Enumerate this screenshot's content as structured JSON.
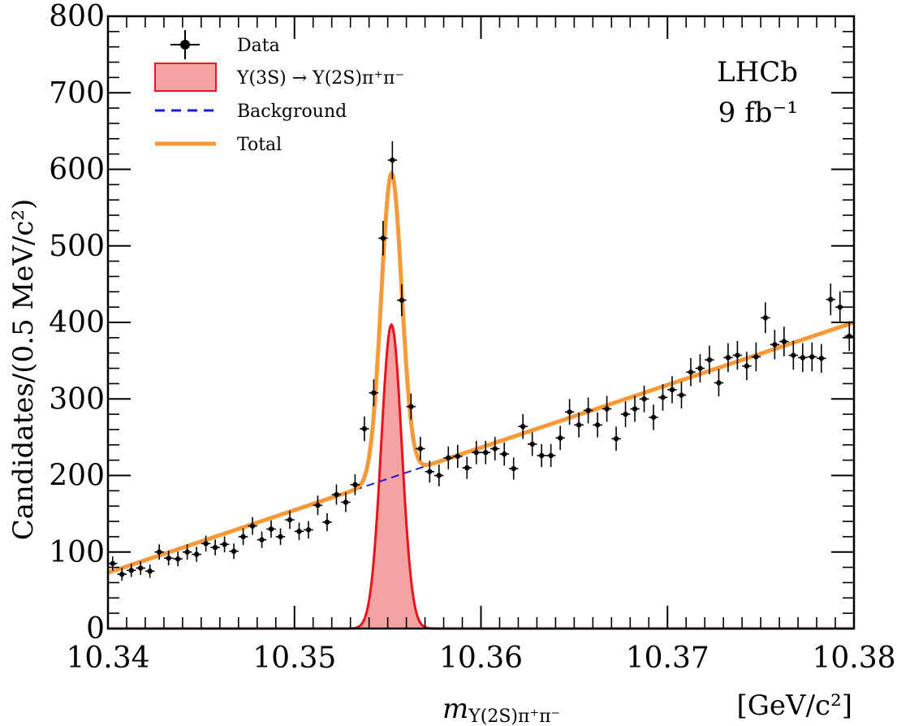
{
  "chart_data": {
    "type": "line",
    "xlabel_math": "m",
    "xlabel_sub": "Υ(2S)π⁺π⁻",
    "xunit": "[GeV/c²]",
    "ylabel": "Candidates/(0.5 MeV/c²)",
    "xlim": [
      10.34,
      10.38
    ],
    "ylim": [
      0,
      800
    ],
    "x_ticks": [
      "10.34",
      "10.35",
      "10.36",
      "10.37",
      "10.38"
    ],
    "y_ticks": [
      "0",
      "100",
      "200",
      "300",
      "400",
      "500",
      "600",
      "700",
      "800"
    ],
    "annotations": {
      "experiment": "LHCb",
      "lumi": "9 fb⁻¹"
    },
    "legend": {
      "placement": "top-left",
      "entries": [
        {
          "label": "Data",
          "style": "marker"
        },
        {
          "label": "Υ(3S) → Υ(2S)π⁺π⁻",
          "style": "fill"
        },
        {
          "label": "Background",
          "style": "dashed"
        },
        {
          "label": "Total",
          "style": "line"
        }
      ]
    },
    "colors": {
      "signal_fill": "#f4a3a3",
      "signal_line": "#e8141c",
      "background": "#1c1cd6",
      "total": "#f69936",
      "data": "#000000"
    },
    "model": {
      "background": {
        "x": [
          10.34,
          10.38
        ],
        "y": [
          73,
          400
        ]
      },
      "signal": {
        "mean": 10.3552,
        "sigma": 0.00055,
        "peak": 397
      }
    },
    "data": {
      "x": [
        10.34025,
        10.34075,
        10.34125,
        10.34175,
        10.34225,
        10.34275,
        10.34325,
        10.34375,
        10.34425,
        10.34475,
        10.34525,
        10.34575,
        10.34625,
        10.34675,
        10.34725,
        10.34775,
        10.34825,
        10.34875,
        10.34925,
        10.34975,
        10.35025,
        10.35075,
        10.35125,
        10.35175,
        10.35225,
        10.35275,
        10.35325,
        10.35375,
        10.35425,
        10.35475,
        10.35525,
        10.35575,
        10.35625,
        10.35675,
        10.35725,
        10.35775,
        10.35825,
        10.35875,
        10.35925,
        10.35975,
        10.36025,
        10.36075,
        10.36125,
        10.36175,
        10.36225,
        10.36275,
        10.36325,
        10.36375,
        10.36425,
        10.36475,
        10.36525,
        10.36575,
        10.36625,
        10.36675,
        10.36725,
        10.36775,
        10.36825,
        10.36875,
        10.36925,
        10.36975,
        10.37025,
        10.37075,
        10.37125,
        10.37175,
        10.37225,
        10.37275,
        10.37325,
        10.37375,
        10.37425,
        10.37475,
        10.37525,
        10.37575,
        10.37625,
        10.37675,
        10.37725,
        10.37775,
        10.37825,
        10.37875,
        10.37925,
        10.37975
      ],
      "y": [
        85,
        71,
        76,
        79,
        75,
        100,
        92,
        91,
        100,
        97,
        111,
        106,
        110,
        101,
        120,
        134,
        116,
        130,
        120,
        142,
        127,
        129,
        161,
        139,
        175,
        165,
        188,
        261,
        308,
        510,
        612,
        429,
        290,
        235,
        205,
        200,
        223,
        225,
        210,
        230,
        230,
        235,
        228,
        209,
        264,
        241,
        226,
        226,
        249,
        283,
        266,
        285,
        266,
        287,
        248,
        280,
        287,
        300,
        276,
        302,
        312,
        305,
        335,
        340,
        351,
        321,
        354,
        357,
        343,
        355,
        406,
        371,
        375,
        357,
        354,
        355,
        353,
        430,
        420,
        382
      ]
    }
  }
}
